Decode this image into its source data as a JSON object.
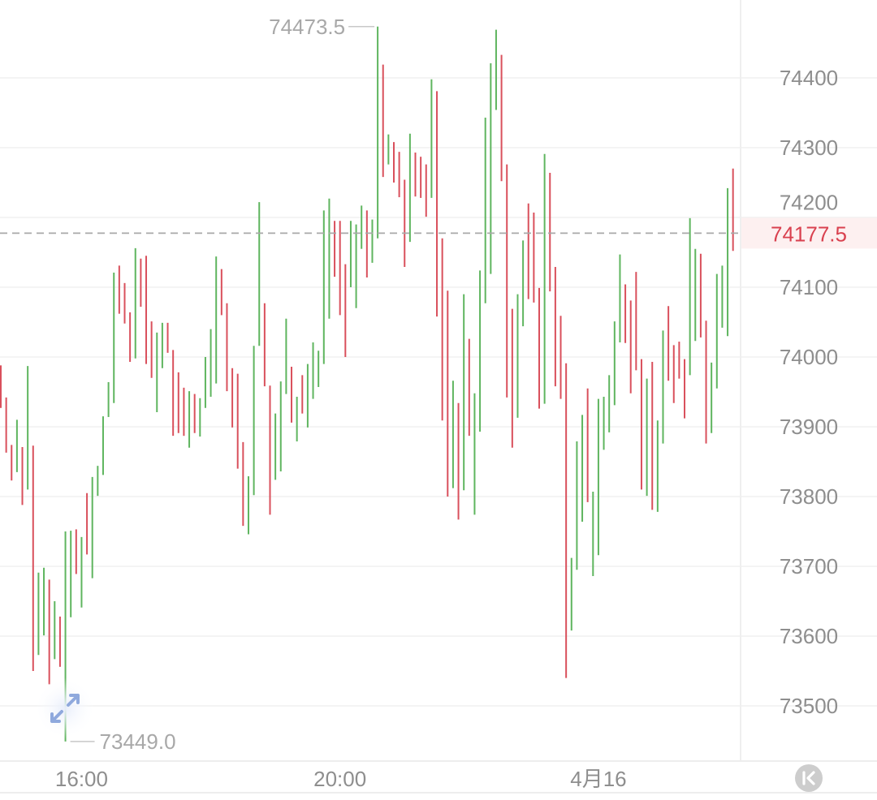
{
  "chart_data": {
    "type": "ohlc-range-bars",
    "y_ticks": [
      74400,
      74300,
      74200,
      74100,
      74000,
      73900,
      73800,
      73700,
      73600,
      73500
    ],
    "ylim": [
      73415,
      74505
    ],
    "grid": true,
    "x_ticks": [
      {
        "label": "16:00",
        "bar_index": 15
      },
      {
        "label": "20:00",
        "bar_index": 63
      },
      {
        "label": "4月16",
        "bar_index": 111
      }
    ],
    "last_price": {
      "value": 74177.5,
      "label": "74177.5",
      "color": "#d9414f"
    },
    "high_marker": {
      "value": 74473.5,
      "label": "74473.5",
      "bar_index": 70
    },
    "low_marker": {
      "value": 73449.0,
      "label": "73449.0",
      "bar_index": 12
    },
    "colors": {
      "up": "#5fb55f",
      "down": "#d9505c",
      "grid": "#f0f0f0",
      "last_line": "#a8a8a8"
    },
    "bars_fields": [
      "high",
      "low",
      "direction"
    ],
    "bars": [
      [
        73988,
        73927,
        "down"
      ],
      [
        73942,
        73863,
        "down"
      ],
      [
        73874,
        73823,
        "down"
      ],
      [
        73910,
        73835,
        "up"
      ],
      [
        73871,
        73788,
        "down"
      ],
      [
        73987,
        73810,
        "up"
      ],
      [
        73873,
        73550,
        "down"
      ],
      [
        73691,
        73573,
        "up"
      ],
      [
        73698,
        73601,
        "up"
      ],
      [
        73681,
        73531,
        "down"
      ],
      [
        73650,
        73567,
        "up"
      ],
      [
        73628,
        73556,
        "down"
      ],
      [
        73750,
        73449,
        "up"
      ],
      [
        73751,
        73627,
        "up"
      ],
      [
        73753,
        73689,
        "down"
      ],
      [
        73742,
        73641,
        "up"
      ],
      [
        73805,
        73717,
        "down"
      ],
      [
        73828,
        73683,
        "up"
      ],
      [
        73844,
        73801,
        "up"
      ],
      [
        73915,
        73831,
        "up"
      ],
      [
        73964,
        73914,
        "up"
      ],
      [
        74121,
        73934,
        "up"
      ],
      [
        74131,
        74062,
        "down"
      ],
      [
        74106,
        74048,
        "down"
      ],
      [
        74064,
        73993,
        "down"
      ],
      [
        74156,
        73998,
        "up"
      ],
      [
        74141,
        74072,
        "down"
      ],
      [
        74145,
        73990,
        "down"
      ],
      [
        74051,
        73970,
        "down"
      ],
      [
        74035,
        73921,
        "up"
      ],
      [
        74049,
        73984,
        "up"
      ],
      [
        74049,
        74006,
        "down"
      ],
      [
        74010,
        73887,
        "down"
      ],
      [
        73978,
        73891,
        "down"
      ],
      [
        73956,
        73887,
        "down"
      ],
      [
        73951,
        73870,
        "up"
      ],
      [
        73947,
        73891,
        "down"
      ],
      [
        73941,
        73886,
        "up"
      ],
      [
        74000,
        73927,
        "up"
      ],
      [
        74040,
        73943,
        "up"
      ],
      [
        74144,
        73962,
        "up"
      ],
      [
        74126,
        74060,
        "down"
      ],
      [
        74077,
        73951,
        "down"
      ],
      [
        73984,
        73899,
        "down"
      ],
      [
        73976,
        73840,
        "down"
      ],
      [
        73878,
        73758,
        "down"
      ],
      [
        73829,
        73746,
        "up"
      ],
      [
        74016,
        73802,
        "up"
      ],
      [
        74222,
        74016,
        "up"
      ],
      [
        74077,
        73958,
        "down"
      ],
      [
        73959,
        73774,
        "down"
      ],
      [
        73919,
        73824,
        "up"
      ],
      [
        73965,
        73836,
        "up"
      ],
      [
        74055,
        73947,
        "up"
      ],
      [
        73986,
        73906,
        "down"
      ],
      [
        73943,
        73879,
        "up"
      ],
      [
        73974,
        73919,
        "down"
      ],
      [
        73990,
        73899,
        "up"
      ],
      [
        74021,
        73940,
        "up"
      ],
      [
        74009,
        73957,
        "up"
      ],
      [
        74210,
        73990,
        "up"
      ],
      [
        74227,
        74055,
        "up"
      ],
      [
        74195,
        74115,
        "down"
      ],
      [
        74195,
        74060,
        "down"
      ],
      [
        74133,
        74000,
        "down"
      ],
      [
        74195,
        74100,
        "up"
      ],
      [
        74190,
        74070,
        "up"
      ],
      [
        74217,
        74155,
        "up"
      ],
      [
        74210,
        74114,
        "down"
      ],
      [
        74197,
        74135,
        "up"
      ],
      [
        74473.5,
        74170,
        "up"
      ],
      [
        74419,
        74258,
        "down"
      ],
      [
        74319,
        74276,
        "up"
      ],
      [
        74308,
        74250,
        "down"
      ],
      [
        74294,
        74229,
        "down"
      ],
      [
        74254,
        74129,
        "down"
      ],
      [
        74320,
        74165,
        "up"
      ],
      [
        74293,
        74230,
        "down"
      ],
      [
        74287,
        74228,
        "down"
      ],
      [
        74276,
        74201,
        "down"
      ],
      [
        74398,
        74228,
        "up"
      ],
      [
        74381,
        74058,
        "down"
      ],
      [
        74170,
        73909,
        "down"
      ],
      [
        74095,
        73800,
        "down"
      ],
      [
        73966,
        73812,
        "up"
      ],
      [
        73934,
        73767,
        "down"
      ],
      [
        74090,
        73809,
        "up"
      ],
      [
        74026,
        73887,
        "down"
      ],
      [
        73948,
        73774,
        "up"
      ],
      [
        74124,
        73893,
        "up"
      ],
      [
        74343,
        74077,
        "up"
      ],
      [
        74421,
        74119,
        "up"
      ],
      [
        74469,
        74354,
        "up"
      ],
      [
        74433,
        74252,
        "down"
      ],
      [
        74276,
        73942,
        "down"
      ],
      [
        74069,
        73870,
        "down"
      ],
      [
        74090,
        73913,
        "up"
      ],
      [
        74167,
        74044,
        "up"
      ],
      [
        74220,
        74083,
        "down"
      ],
      [
        74207,
        74078,
        "down"
      ],
      [
        74099,
        73926,
        "down"
      ],
      [
        74291,
        73933,
        "up"
      ],
      [
        74264,
        74094,
        "down"
      ],
      [
        74129,
        73958,
        "down"
      ],
      [
        74059,
        73940,
        "down"
      ],
      [
        73991,
        73540,
        "down"
      ],
      [
        73712,
        73608,
        "up"
      ],
      [
        73879,
        73695,
        "up"
      ],
      [
        73917,
        73764,
        "up"
      ],
      [
        73955,
        73792,
        "down"
      ],
      [
        73807,
        73686,
        "up"
      ],
      [
        73940,
        73716,
        "up"
      ],
      [
        73943,
        73867,
        "up"
      ],
      [
        73974,
        73892,
        "up"
      ],
      [
        74051,
        73931,
        "up"
      ],
      [
        74147,
        74021,
        "up"
      ],
      [
        74104,
        74020,
        "down"
      ],
      [
        74081,
        73948,
        "down"
      ],
      [
        74122,
        73981,
        "down"
      ],
      [
        73997,
        73810,
        "down"
      ],
      [
        73969,
        73801,
        "up"
      ],
      [
        73993,
        73781,
        "down"
      ],
      [
        73909,
        73778,
        "up"
      ],
      [
        74038,
        73876,
        "up"
      ],
      [
        74073,
        73966,
        "down"
      ],
      [
        74017,
        73934,
        "down"
      ],
      [
        74022,
        73969,
        "down"
      ],
      [
        73997,
        73912,
        "down"
      ],
      [
        74199,
        73974,
        "up"
      ],
      [
        74155,
        74023,
        "up"
      ],
      [
        74148,
        74028,
        "down"
      ],
      [
        74052,
        73876,
        "down"
      ],
      [
        73992,
        73891,
        "up"
      ],
      [
        74119,
        73955,
        "up"
      ],
      [
        74131,
        74042,
        "up"
      ],
      [
        74242,
        74030,
        "up"
      ],
      [
        74270,
        74152,
        "down"
      ]
    ]
  },
  "controls": {
    "expand_icon": "expand-arrows-icon",
    "jump_latest_icon": "jump-to-latest-icon"
  }
}
